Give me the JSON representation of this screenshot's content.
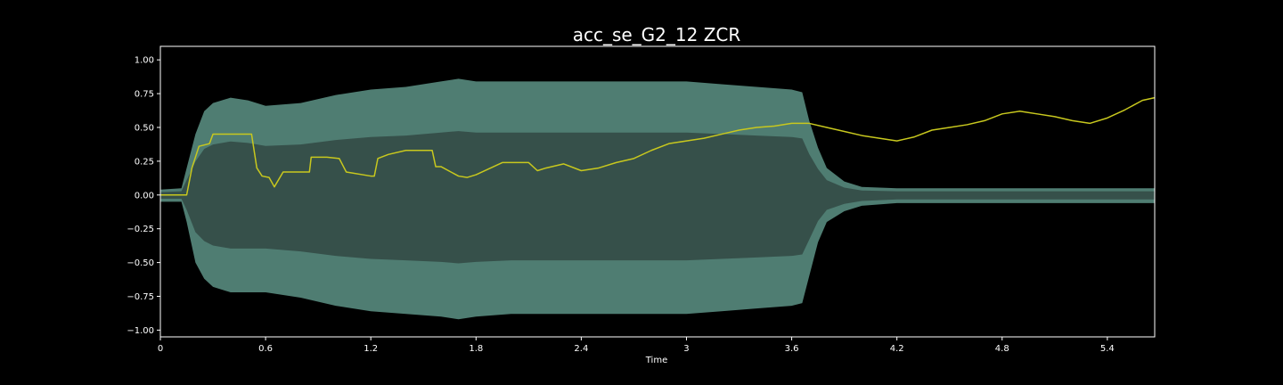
{
  "chart_data": {
    "type": "line",
    "title": "acc_se_G2_12 ZCR",
    "xlabel": "Time",
    "ylabel": "",
    "xlim": [
      0,
      5.67
    ],
    "ylim": [
      -1.05,
      1.1
    ],
    "xticks": [
      0,
      0.6,
      1.2,
      1.8,
      2.4,
      3.0,
      3.6,
      4.2,
      4.8,
      5.4
    ],
    "xtick_labels": [
      "0",
      "0.6",
      "1.2",
      "1.8",
      "2.4",
      "3",
      "3.6",
      "4.2",
      "4.8",
      "5.4"
    ],
    "yticks": [
      1.0,
      0.75,
      0.5,
      0.25,
      0.0,
      -0.25,
      -0.5,
      -0.75,
      -1.0
    ],
    "ytick_labels": [
      "1.00",
      "0.75",
      "0.50",
      "0.25",
      "0.00",
      "−0.25",
      "−0.50",
      "−0.75",
      "−1.00"
    ],
    "grid": false,
    "colors": {
      "background": "#000000",
      "axes_frame": "#ffffff",
      "waveform_outer": "#4f7d72",
      "waveform_inner": "#36504a",
      "zcr_line": "#c8c81e"
    },
    "series": [
      {
        "kind": "waveform_envelope",
        "x": [
          0,
          0.12,
          0.15,
          0.2,
          0.25,
          0.3,
          0.4,
          0.5,
          0.6,
          0.8,
          1.0,
          1.2,
          1.4,
          1.6,
          1.7,
          1.8,
          2.0,
          2.2,
          2.4,
          2.6,
          2.8,
          3.0,
          3.2,
          3.4,
          3.6,
          3.66,
          3.7,
          3.75,
          3.8,
          3.9,
          4.0,
          4.2,
          4.5,
          5.0,
          5.5,
          5.67
        ],
        "upper": [
          0.04,
          0.05,
          0.2,
          0.45,
          0.62,
          0.68,
          0.72,
          0.7,
          0.66,
          0.68,
          0.74,
          0.78,
          0.8,
          0.84,
          0.86,
          0.84,
          0.84,
          0.84,
          0.84,
          0.84,
          0.84,
          0.84,
          0.82,
          0.8,
          0.78,
          0.76,
          0.55,
          0.35,
          0.2,
          0.1,
          0.06,
          0.05,
          0.05,
          0.05,
          0.05,
          0.05
        ],
        "lower": [
          -0.05,
          -0.05,
          -0.2,
          -0.5,
          -0.62,
          -0.68,
          -0.72,
          -0.72,
          -0.72,
          -0.76,
          -0.82,
          -0.86,
          -0.88,
          -0.9,
          -0.92,
          -0.9,
          -0.88,
          -0.88,
          -0.88,
          -0.88,
          -0.88,
          -0.88,
          -0.86,
          -0.84,
          -0.82,
          -0.8,
          -0.6,
          -0.35,
          -0.2,
          -0.12,
          -0.08,
          -0.06,
          -0.06,
          -0.06,
          -0.06,
          -0.06
        ]
      },
      {
        "kind": "zcr_line",
        "x": [
          0,
          0.15,
          0.18,
          0.22,
          0.28,
          0.3,
          0.4,
          0.52,
          0.55,
          0.58,
          0.62,
          0.65,
          0.7,
          0.85,
          0.86,
          0.95,
          1.02,
          1.06,
          1.2,
          1.22,
          1.24,
          1.3,
          1.4,
          1.55,
          1.57,
          1.6,
          1.7,
          1.75,
          1.8,
          1.95,
          2.0,
          2.1,
          2.15,
          2.2,
          2.3,
          2.4,
          2.5,
          2.6,
          2.7,
          2.8,
          2.9,
          3.0,
          3.1,
          3.2,
          3.3,
          3.4,
          3.5,
          3.6,
          3.7,
          3.8,
          3.9,
          4.0,
          4.1,
          4.2,
          4.3,
          4.4,
          4.5,
          4.6,
          4.7,
          4.8,
          4.9,
          5.0,
          5.1,
          5.2,
          5.3,
          5.4,
          5.5,
          5.6,
          5.67
        ],
        "y": [
          0.0,
          0.0,
          0.2,
          0.36,
          0.38,
          0.45,
          0.45,
          0.45,
          0.2,
          0.14,
          0.13,
          0.06,
          0.17,
          0.17,
          0.28,
          0.28,
          0.27,
          0.17,
          0.14,
          0.14,
          0.27,
          0.3,
          0.33,
          0.33,
          0.21,
          0.21,
          0.14,
          0.13,
          0.15,
          0.24,
          0.24,
          0.24,
          0.18,
          0.2,
          0.23,
          0.18,
          0.2,
          0.24,
          0.27,
          0.33,
          0.38,
          0.4,
          0.42,
          0.45,
          0.48,
          0.5,
          0.51,
          0.53,
          0.53,
          0.5,
          0.47,
          0.44,
          0.42,
          0.4,
          0.43,
          0.48,
          0.5,
          0.52,
          0.55,
          0.6,
          0.62,
          0.6,
          0.58,
          0.55,
          0.53,
          0.57,
          0.63,
          0.7,
          0.72
        ]
      }
    ]
  }
}
